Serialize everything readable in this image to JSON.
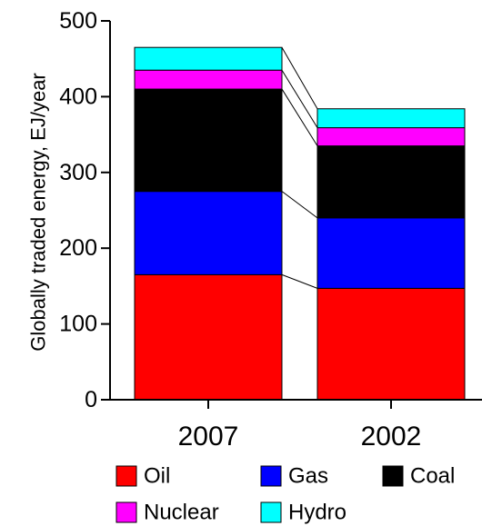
{
  "chart_data": {
    "type": "bar",
    "stacked": true,
    "categories": [
      "2007",
      "2002"
    ],
    "ylabel": "Globally traded energy,  EJ/year",
    "ylim": [
      0,
      500
    ],
    "yticks": [
      0,
      100,
      200,
      300,
      400,
      500
    ],
    "grid": false,
    "legend_position": "bottom",
    "connector_lines": true,
    "series": [
      {
        "name": "Oil",
        "color": "#ff0000",
        "values": [
          165,
          147
        ]
      },
      {
        "name": "Gas",
        "color": "#0000ff",
        "values": [
          110,
          93
        ]
      },
      {
        "name": "Coal",
        "color": "#000000",
        "values": [
          135,
          95
        ]
      },
      {
        "name": "Nuclear",
        "color": "#ff00ff",
        "values": [
          25,
          24
        ]
      },
      {
        "name": "Hydro",
        "color": "#00ffff",
        "values": [
          30,
          25
        ]
      }
    ]
  }
}
